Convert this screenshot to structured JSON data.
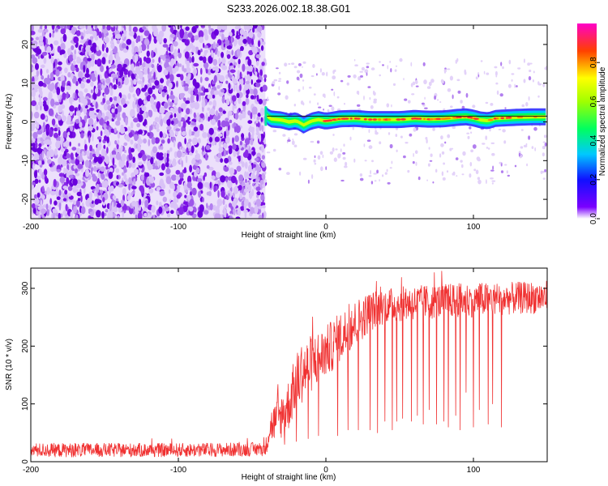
{
  "title": "S233.2026.002.18.38.G01",
  "chart_data": [
    {
      "type": "heatmap",
      "title": "S233.2026.002.18.38.G01",
      "xlabel": "Height of straight line (km)",
      "ylabel": "Frequency (Hz)",
      "xlim": [
        -200,
        150
      ],
      "ylim": [
        -25,
        25
      ],
      "xticks": [
        -200,
        -100,
        0,
        100
      ],
      "xtick_labels": [
        "-200",
        "-100",
        "0",
        "100"
      ],
      "yticks": [
        -20,
        -10,
        0,
        10,
        20
      ],
      "ytick_labels": [
        "-20",
        "-10",
        "0",
        "10",
        "20"
      ],
      "noise_region_x": [
        -200,
        -41
      ],
      "signal_start_x": -41,
      "signal_line_y": 1.5,
      "signal_freq_profile": [
        [
          -41,
          2.0
        ],
        [
          -38,
          0.8
        ],
        [
          -30,
          0.5
        ],
        [
          -25,
          0.0
        ],
        [
          -20,
          0.3
        ],
        [
          -15,
          -0.8
        ],
        [
          -10,
          0.2
        ],
        [
          -5,
          0.6
        ],
        [
          0,
          0.2
        ],
        [
          5,
          0.5
        ],
        [
          10,
          0.8
        ],
        [
          20,
          0.9
        ],
        [
          30,
          0.6
        ],
        [
          40,
          0.6
        ],
        [
          50,
          0.6
        ],
        [
          60,
          0.9
        ],
        [
          70,
          0.7
        ],
        [
          80,
          0.8
        ],
        [
          90,
          1.2
        ],
        [
          95,
          1.3
        ],
        [
          100,
          1.0
        ],
        [
          105,
          0.5
        ],
        [
          110,
          0.3
        ],
        [
          115,
          0.9
        ],
        [
          120,
          1.0
        ],
        [
          130,
          1.2
        ],
        [
          140,
          1.3
        ],
        [
          150,
          1.3
        ]
      ],
      "colorbar": {
        "label": "Normalized spectral amplitude",
        "range": [
          0,
          1
        ],
        "ticks": [
          0.0,
          0.2,
          0.4,
          0.6,
          0.8
        ],
        "tick_labels": [
          "0.0",
          "0.2",
          "0.4",
          "0.6",
          "0.8"
        ]
      }
    },
    {
      "type": "line",
      "xlabel": "Height of straight line (km)",
      "ylabel": "SNR (10 * v/v)",
      "xlim": [
        -200,
        150
      ],
      "ylim": [
        0,
        335
      ],
      "xticks": [
        -200,
        -100,
        0,
        100
      ],
      "xtick_labels": [
        "-200",
        "-100",
        "0",
        "100"
      ],
      "yticks": [
        0,
        100,
        200,
        300
      ],
      "ytick_labels": [
        "0",
        "100",
        "200",
        "300"
      ],
      "line_color": "#f03232",
      "series": [
        {
          "name": "SNR",
          "envelope": [
            {
              "x": -200,
              "mean": 20,
              "spread": 12
            },
            {
              "x": -150,
              "mean": 20,
              "spread": 12
            },
            {
              "x": -100,
              "mean": 20,
              "spread": 12
            },
            {
              "x": -60,
              "mean": 21,
              "spread": 12
            },
            {
              "x": -41,
              "mean": 22,
              "spread": 12
            },
            {
              "x": -38,
              "mean": 60,
              "spread": 30
            },
            {
              "x": -30,
              "mean": 80,
              "spread": 40
            },
            {
              "x": -25,
              "mean": 100,
              "spread": 45
            },
            {
              "x": -20,
              "mean": 140,
              "spread": 50
            },
            {
              "x": -10,
              "mean": 170,
              "spread": 50
            },
            {
              "x": 0,
              "mean": 190,
              "spread": 45
            },
            {
              "x": 10,
              "mean": 215,
              "spread": 45
            },
            {
              "x": 20,
              "mean": 240,
              "spread": 40
            },
            {
              "x": 30,
              "mean": 260,
              "spread": 35
            },
            {
              "x": 40,
              "mean": 270,
              "spread": 30
            },
            {
              "x": 60,
              "mean": 275,
              "spread": 30
            },
            {
              "x": 80,
              "mean": 278,
              "spread": 30
            },
            {
              "x": 100,
              "mean": 280,
              "spread": 30
            },
            {
              "x": 120,
              "mean": 282,
              "spread": 28
            },
            {
              "x": 150,
              "mean": 285,
              "spread": 28
            }
          ],
          "dropouts": [
            {
              "x": -28,
              "y": 30
            },
            {
              "x": -20,
              "y": 35
            },
            {
              "x": -12,
              "y": 40
            },
            {
              "x": -5,
              "y": 45
            },
            {
              "x": 8,
              "y": 45
            },
            {
              "x": 15,
              "y": 55
            },
            {
              "x": 22,
              "y": 55
            },
            {
              "x": 30,
              "y": 55
            },
            {
              "x": 35,
              "y": 50
            },
            {
              "x": 40,
              "y": 70
            },
            {
              "x": 45,
              "y": 55
            },
            {
              "x": 48,
              "y": 70
            },
            {
              "x": 52,
              "y": 75
            },
            {
              "x": 58,
              "y": 70
            },
            {
              "x": 62,
              "y": 80
            },
            {
              "x": 66,
              "y": 65
            },
            {
              "x": 70,
              "y": 90
            },
            {
              "x": 75,
              "y": 65
            },
            {
              "x": 80,
              "y": 70
            },
            {
              "x": 83,
              "y": 60
            },
            {
              "x": 88,
              "y": 80
            },
            {
              "x": 91,
              "y": 55
            },
            {
              "x": 95,
              "y": 120
            },
            {
              "x": 100,
              "y": 60
            },
            {
              "x": 104,
              "y": 90
            },
            {
              "x": 110,
              "y": 65
            },
            {
              "x": 113,
              "y": 100
            },
            {
              "x": 119,
              "y": 60
            }
          ]
        }
      ]
    }
  ]
}
